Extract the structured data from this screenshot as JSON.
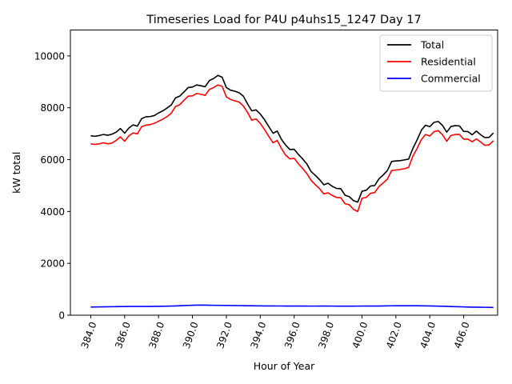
{
  "chart_data": {
    "type": "line",
    "title": "Timeseries Load for P4U p4uhs15_1247  Day 17",
    "xlabel": "Hour of Year",
    "ylabel": "kW total",
    "xlim": [
      382.8,
      408.0
    ],
    "ylim": [
      0,
      11000
    ],
    "x_ticks": [
      384,
      386,
      388,
      390,
      392,
      394,
      396,
      398,
      400,
      402,
      404,
      406
    ],
    "x_tick_labels": [
      "384.0",
      "386.0",
      "388.0",
      "390.0",
      "392.0",
      "394.0",
      "396.0",
      "398.0",
      "400.0",
      "402.0",
      "404.0",
      "406.0"
    ],
    "y_ticks": [
      0,
      2000,
      4000,
      6000,
      8000,
      10000
    ],
    "y_tick_labels": [
      "0",
      "2000",
      "4000",
      "6000",
      "8000",
      "10000"
    ],
    "grid": false,
    "legend_position": "top-right",
    "x": [
      384.0,
      384.25,
      384.5,
      384.75,
      385.0,
      385.25,
      385.5,
      385.75,
      386.0,
      386.25,
      386.5,
      386.75,
      387.0,
      387.25,
      387.5,
      387.75,
      388.0,
      388.25,
      388.5,
      388.75,
      389.0,
      389.25,
      389.5,
      389.75,
      390.0,
      390.25,
      390.5,
      390.75,
      391.0,
      391.25,
      391.5,
      391.75,
      392.0,
      392.25,
      392.5,
      392.75,
      393.0,
      393.25,
      393.5,
      393.75,
      394.0,
      394.25,
      394.5,
      394.75,
      395.0,
      395.25,
      395.5,
      395.75,
      396.0,
      396.25,
      396.5,
      396.75,
      397.0,
      397.25,
      397.5,
      397.75,
      398.0,
      398.25,
      398.5,
      398.75,
      399.0,
      399.25,
      399.5,
      399.75,
      400.0,
      400.25,
      400.5,
      400.75,
      401.0,
      401.25,
      401.5,
      401.75,
      402.0,
      402.25,
      402.5,
      402.75,
      403.0,
      403.25,
      403.5,
      403.75,
      404.0,
      404.25,
      404.5,
      404.75,
      405.0,
      405.25,
      405.5,
      405.75,
      406.0,
      406.25,
      406.5,
      406.75,
      407.0,
      407.25,
      407.5,
      407.75
    ],
    "series": [
      {
        "name": "Total",
        "color": "#000000",
        "values": [
          6920,
          6900,
          6930,
          6970,
          6940,
          6980,
          7060,
          7200,
          7020,
          7220,
          7340,
          7290,
          7580,
          7650,
          7660,
          7700,
          7800,
          7880,
          7990,
          8110,
          8380,
          8450,
          8610,
          8780,
          8800,
          8880,
          8850,
          8810,
          9050,
          9130,
          9250,
          9180,
          8780,
          8680,
          8640,
          8580,
          8450,
          8150,
          7880,
          7920,
          7760,
          7540,
          7280,
          7020,
          7100,
          6780,
          6560,
          6390,
          6400,
          6200,
          6030,
          5830,
          5540,
          5390,
          5230,
          5030,
          5090,
          4970,
          4890,
          4880,
          4630,
          4570,
          4420,
          4360,
          4780,
          4820,
          4980,
          5000,
          5260,
          5410,
          5580,
          5930,
          5950,
          5960,
          5990,
          6020,
          6430,
          6760,
          7130,
          7330,
          7270,
          7440,
          7470,
          7320,
          7060,
          7280,
          7310,
          7300,
          7090,
          7080,
          6960,
          7100,
          6960,
          6850,
          6860,
          7030
        ]
      },
      {
        "name": "Residential",
        "color": "#ff0000",
        "values": [
          6610,
          6590,
          6610,
          6650,
          6610,
          6640,
          6740,
          6880,
          6710,
          6920,
          7030,
          6990,
          7270,
          7330,
          7350,
          7400,
          7480,
          7560,
          7660,
          7790,
          8050,
          8120,
          8290,
          8450,
          8460,
          8550,
          8520,
          8480,
          8710,
          8780,
          8880,
          8830,
          8420,
          8320,
          8270,
          8220,
          8070,
          7820,
          7520,
          7570,
          7400,
          7160,
          6900,
          6650,
          6740,
          6430,
          6170,
          6030,
          6050,
          5840,
          5660,
          5460,
          5200,
          5030,
          4880,
          4680,
          4720,
          4620,
          4540,
          4530,
          4300,
          4260,
          4080,
          4000,
          4510,
          4540,
          4700,
          4730,
          4960,
          5100,
          5250,
          5580,
          5600,
          5620,
          5650,
          5700,
          6130,
          6430,
          6770,
          6970,
          6910,
          7080,
          7120,
          6960,
          6710,
          6930,
          6970,
          6970,
          6790,
          6790,
          6690,
          6800,
          6680,
          6550,
          6570,
          6730
        ]
      },
      {
        "name": "Commercial",
        "color": "#0000ff",
        "values": [
          315,
          318,
          320,
          322,
          325,
          328,
          330,
          333,
          335,
          337,
          338,
          338,
          338,
          338,
          338,
          340,
          342,
          345,
          348,
          352,
          358,
          365,
          372,
          378,
          385,
          388,
          390,
          388,
          385,
          382,
          380,
          378,
          376,
          374,
          372,
          370,
          368,
          366,
          364,
          362,
          360,
          358,
          357,
          356,
          355,
          355,
          354,
          354,
          353,
          352,
          352,
          351,
          351,
          351,
          352,
          352,
          352,
          351,
          350,
          350,
          350,
          350,
          350,
          351,
          352,
          352,
          353,
          353,
          354,
          356,
          360,
          363,
          365,
          366,
          366,
          366,
          365,
          364,
          362,
          360,
          356,
          352,
          348,
          344,
          340,
          335,
          330,
          325,
          320,
          315,
          312,
          310,
          308,
          305,
          302,
          300
        ]
      }
    ]
  }
}
